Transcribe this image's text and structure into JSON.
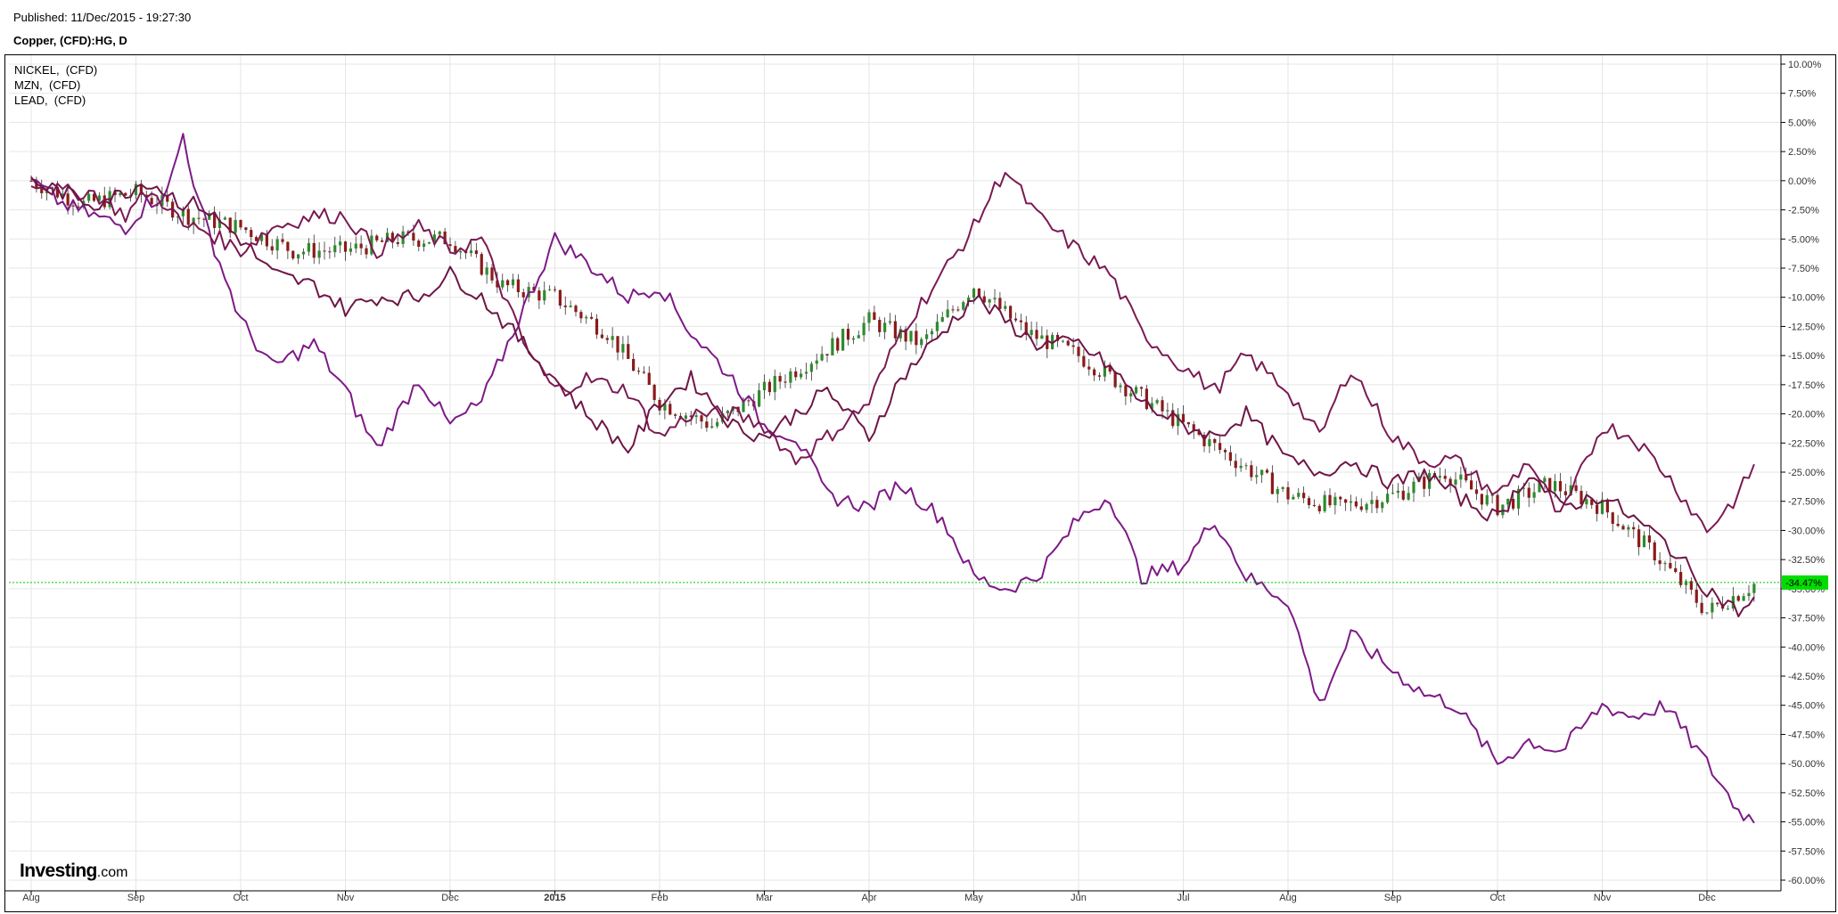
{
  "header": {
    "published": "Published: 11/Dec/2015 - 19:27:30",
    "subtitle": "Copper, (CFD):HG, D"
  },
  "legend": [
    "NICKEL,  (CFD)",
    "MZN,  (CFD)",
    "LEAD,  (CFD)"
  ],
  "logo": {
    "text": "Investing",
    "suffix": ".com"
  },
  "colors": {
    "grid": "#e6e6e6",
    "nickel": "#7d1a86",
    "mzn": "#7a1a52",
    "lead": "#6e1646",
    "candle_up": "#2e8b2e",
    "candle_down": "#8b1a1a",
    "current_line": "#00cc00",
    "current_badge": "#00dd00"
  },
  "chart_data": {
    "type": "line",
    "y_unit": "%",
    "ylim": [
      -60,
      10
    ],
    "y_ticks": [
      "10.00%",
      "7.50%",
      "5.00%",
      "2.50%",
      "0.00%",
      "-2.50%",
      "-5.00%",
      "-7.50%",
      "-10.00%",
      "-12.50%",
      "-15.00%",
      "-17.50%",
      "-20.00%",
      "-22.50%",
      "-25.00%",
      "-27.50%",
      "-30.00%",
      "-32.50%",
      "-35.00%",
      "-37.50%",
      "-40.00%",
      "-42.50%",
      "-45.00%",
      "-47.50%",
      "-50.00%",
      "-52.50%",
      "-55.00%",
      "-57.50%",
      "-60.00%"
    ],
    "x_ticks": [
      {
        "label": "Aug",
        "bold": false
      },
      {
        "label": "Sep",
        "bold": false
      },
      {
        "label": "Oct",
        "bold": false
      },
      {
        "label": "Nov",
        "bold": false
      },
      {
        "label": "Dec",
        "bold": false
      },
      {
        "label": "2015",
        "bold": true
      },
      {
        "label": "Feb",
        "bold": false
      },
      {
        "label": "Mar",
        "bold": false
      },
      {
        "label": "Apr",
        "bold": false
      },
      {
        "label": "May",
        "bold": false
      },
      {
        "label": "Jun",
        "bold": false
      },
      {
        "label": "Jul",
        "bold": false
      },
      {
        "label": "Aug",
        "bold": false
      },
      {
        "label": "Sep",
        "bold": false
      },
      {
        "label": "Oct",
        "bold": false
      },
      {
        "label": "Nov",
        "bold": false
      },
      {
        "label": "Dec",
        "bold": false
      }
    ],
    "current_value": -34.47,
    "current_label": "-34.47%",
    "grid": true,
    "series": [
      {
        "name": "NICKEL,  (CFD)",
        "x": [
          0,
          0.3,
          0.6,
          0.9,
          1.1,
          1.3,
          1.45,
          1.6,
          2.0,
          2.3,
          2.7,
          3.0,
          3.3,
          3.7,
          4.0,
          4.3,
          4.7,
          5.0,
          5.3,
          5.7,
          6.0,
          6.3,
          6.7,
          7.0,
          7.3,
          7.6,
          8.0,
          8.3,
          8.7,
          9.0,
          9.3,
          9.6,
          10.0,
          10.3,
          10.6,
          11.0,
          11.3,
          11.6,
          12.0,
          12.3,
          12.6,
          13.0,
          13.3,
          13.6,
          14.0,
          14.3,
          14.6,
          15.0,
          15.3,
          15.6,
          16.0,
          16.3,
          16.47
        ],
        "y": [
          0,
          -2,
          -3,
          -4,
          -2,
          -1,
          4,
          -2,
          -12,
          -16,
          -14,
          -18,
          -23,
          -17,
          -21,
          -19,
          -11,
          -5,
          -7,
          -10,
          -9,
          -13,
          -17,
          -21,
          -22,
          -27,
          -28,
          -26,
          -29,
          -34,
          -35,
          -34,
          -29,
          -27,
          -34,
          -33,
          -29,
          -34,
          -36,
          -45,
          -39,
          -42,
          -44,
          -45,
          -50,
          -48,
          -49,
          -45,
          -46,
          -45,
          -50,
          -54,
          -55
        ]
      },
      {
        "name": "MZN,  (CFD)",
        "x": [
          0,
          0.3,
          0.6,
          0.9,
          1.1,
          1.3,
          1.45,
          1.6,
          2.0,
          2.3,
          2.7,
          3.0,
          3.3,
          3.7,
          4.0,
          4.3,
          4.7,
          5.0,
          5.3,
          5.7,
          6.0,
          6.3,
          6.7,
          7.0,
          7.3,
          7.6,
          8.0,
          8.3,
          8.7,
          9.0,
          9.3,
          9.6,
          10.0,
          10.3,
          10.6,
          11.0,
          11.3,
          11.6,
          12.0,
          12.3,
          12.6,
          13.0,
          13.3,
          13.6,
          14.0,
          14.3,
          14.6,
          15.0,
          15.3,
          15.6,
          16.0,
          16.3,
          16.47
        ],
        "y": [
          0,
          -1,
          -1,
          -3,
          -1,
          -2,
          -4,
          -4,
          -6,
          -4,
          -3,
          -3,
          -6,
          -4,
          -6,
          -5,
          -14,
          -18,
          -17,
          -18,
          -22,
          -20,
          -20,
          -21,
          -24,
          -22,
          -19,
          -13,
          -8,
          -4,
          1,
          -3,
          -6,
          -8,
          -13,
          -16,
          -18,
          -15,
          -18,
          -22,
          -16,
          -22,
          -24,
          -24,
          -27,
          -24,
          -29,
          -21,
          -22,
          -25,
          -30,
          -27,
          -24
        ]
      },
      {
        "name": "LEAD,  (CFD)",
        "x": [
          0,
          0.3,
          0.6,
          0.9,
          1.1,
          1.3,
          1.45,
          1.6,
          2.0,
          2.3,
          2.7,
          3.0,
          3.3,
          3.7,
          4.0,
          4.3,
          4.7,
          5.0,
          5.3,
          5.7,
          6.0,
          6.3,
          6.7,
          7.0,
          7.3,
          7.6,
          8.0,
          8.3,
          8.7,
          9.0,
          9.3,
          9.6,
          10.0,
          10.3,
          10.6,
          11.0,
          11.3,
          11.6,
          12.0,
          12.3,
          12.6,
          13.0,
          13.3,
          13.6,
          14.0,
          14.3,
          14.6,
          15.0,
          15.3,
          15.6,
          16.0,
          16.3,
          16.47
        ],
        "y": [
          0,
          -1,
          -2,
          -1,
          0,
          -1,
          -2,
          -2,
          -5,
          -8,
          -9,
          -11,
          -10,
          -10,
          -8,
          -10,
          -14,
          -17,
          -20,
          -23,
          -19,
          -17,
          -21,
          -22,
          -20,
          -18,
          -22,
          -17,
          -13,
          -10,
          -12,
          -14,
          -14,
          -16,
          -19,
          -21,
          -22,
          -20,
          -24,
          -25,
          -24,
          -26,
          -25,
          -27,
          -29,
          -25,
          -28,
          -27,
          -29,
          -31,
          -35,
          -37,
          -36
        ]
      }
    ],
    "candles_overlay": {
      "name": "Copper, (CFD):HG, D",
      "x": [
        0,
        0.5,
        1.0,
        1.5,
        2.0,
        2.5,
        3.0,
        3.5,
        4.0,
        4.5,
        5.0,
        5.5,
        6.0,
        6.5,
        7.0,
        7.5,
        8.0,
        8.5,
        9.0,
        9.5,
        10.0,
        10.5,
        11.0,
        11.5,
        12.0,
        12.5,
        13.0,
        13.5,
        14.0,
        14.5,
        15.0,
        15.5,
        16.0,
        16.47
      ],
      "y": [
        0,
        -2,
        -1,
        -3,
        -4,
        -6,
        -6,
        -5,
        -5,
        -9,
        -10,
        -13,
        -19,
        -21,
        -18,
        -15,
        -12,
        -14,
        -9,
        -13,
        -15,
        -18,
        -21,
        -24,
        -27,
        -28,
        -27,
        -25,
        -28,
        -26,
        -28,
        -32,
        -37,
        -34.5
      ]
    }
  }
}
